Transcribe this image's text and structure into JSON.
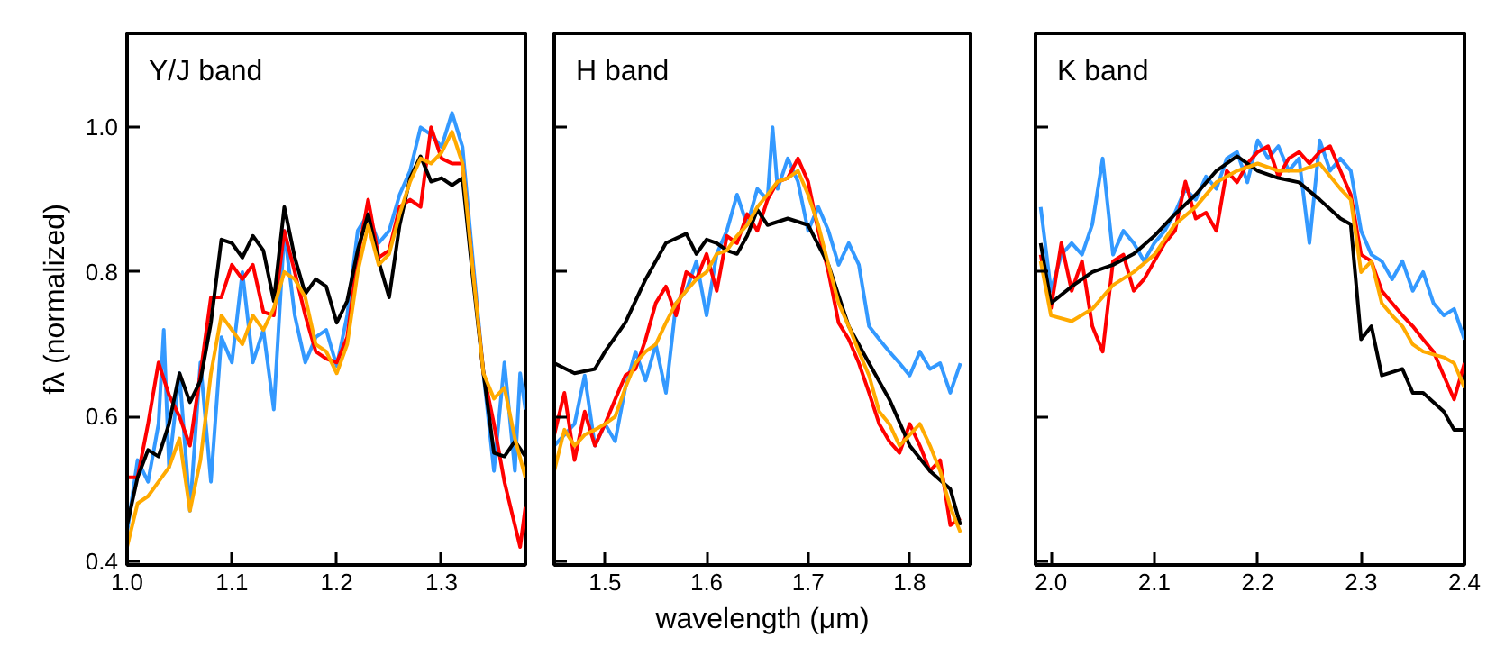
{
  "chart_data": [
    {
      "type": "line",
      "title": "Y/J band",
      "ylabel": "fλ (normalized)",
      "xlim": [
        1.0,
        1.38
      ],
      "ylim": [
        0.395,
        1.13
      ],
      "xticks": [
        {
          "value": 1.0,
          "label": "1.0"
        },
        1.1,
        1.2,
        1.3
      ],
      "yticks": [
        0.4,
        0.6,
        0.8,
        {
          "value": 1.0,
          "label": "1.0"
        }
      ],
      "grid": false,
      "marker": "none",
      "line_style": "solid",
      "x": [
        1.0,
        1.01,
        1.02,
        1.03,
        1.04,
        1.05,
        1.06,
        1.07,
        1.08,
        1.09,
        1.1,
        1.11,
        1.12,
        1.13,
        1.14,
        1.15,
        1.16,
        1.17,
        1.18,
        1.19,
        1.2,
        1.21,
        1.22,
        1.23,
        1.24,
        1.25,
        1.26,
        1.27,
        1.28,
        1.29,
        1.3,
        1.31,
        1.32,
        1.33,
        1.34,
        1.35,
        1.36,
        1.37,
        1.38
      ],
      "series": [
        {
          "color": "#3399ff",
          "x": [
            1.0,
            1.01,
            1.02,
            1.03,
            1.035,
            1.04,
            1.05,
            1.06,
            1.07,
            1.08,
            1.09,
            1.1,
            1.11,
            1.12,
            1.13,
            1.14,
            1.15,
            1.16,
            1.17,
            1.18,
            1.19,
            1.2,
            1.21,
            1.22,
            1.23,
            1.24,
            1.25,
            1.26,
            1.27,
            1.28,
            1.29,
            1.3,
            1.31,
            1.32,
            1.33,
            1.34,
            1.35,
            1.36,
            1.37,
            1.375,
            1.38
          ],
          "values": [
            0.44,
            0.54,
            0.51,
            0.59,
            0.72,
            0.53,
            0.66,
            0.47,
            0.675,
            0.51,
            0.71,
            0.675,
            0.8,
            0.675,
            0.72,
            0.61,
            0.857,
            0.74,
            0.675,
            0.71,
            0.72,
            0.67,
            0.74,
            0.857,
            0.88,
            0.84,
            0.857,
            0.907,
            0.94,
            1.0,
            0.99,
            0.973,
            1.02,
            0.973,
            0.815,
            0.66,
            0.525,
            0.675,
            0.525,
            0.66,
            0.61
          ]
        },
        {
          "color": "#ff0000",
          "x": [
            1.0,
            1.01,
            1.02,
            1.03,
            1.04,
            1.05,
            1.06,
            1.07,
            1.08,
            1.09,
            1.1,
            1.11,
            1.12,
            1.13,
            1.14,
            1.15,
            1.16,
            1.17,
            1.18,
            1.19,
            1.2,
            1.21,
            1.22,
            1.23,
            1.24,
            1.25,
            1.26,
            1.27,
            1.28,
            1.29,
            1.3,
            1.31,
            1.32,
            1.33,
            1.34,
            1.35,
            1.36,
            1.37,
            1.375,
            1.38
          ],
          "values": [
            0.516,
            0.516,
            0.59,
            0.675,
            0.63,
            0.6,
            0.56,
            0.66,
            0.765,
            0.765,
            0.81,
            0.79,
            0.81,
            0.745,
            0.74,
            0.857,
            0.8,
            0.74,
            0.69,
            0.68,
            0.675,
            0.71,
            0.82,
            0.9,
            0.82,
            0.83,
            0.89,
            0.9,
            0.89,
            1.0,
            0.957,
            0.95,
            0.95,
            0.8,
            0.66,
            0.59,
            0.51,
            0.45,
            0.42,
            0.475
          ]
        },
        {
          "color": "#000000",
          "values": [
            0.45,
            0.516,
            0.554,
            0.545,
            0.59,
            0.66,
            0.62,
            0.65,
            0.73,
            0.845,
            0.84,
            0.82,
            0.85,
            0.83,
            0.76,
            0.89,
            0.82,
            0.77,
            0.79,
            0.78,
            0.73,
            0.76,
            0.83,
            0.88,
            0.815,
            0.765,
            0.865,
            0.93,
            0.96,
            0.925,
            0.93,
            0.92,
            0.93,
            0.79,
            0.66,
            0.55,
            0.545,
            0.566,
            0.545
          ]
        },
        {
          "color": "#ffaa00",
          "values": [
            0.42,
            0.48,
            0.49,
            0.51,
            0.53,
            0.57,
            0.47,
            0.54,
            0.66,
            0.74,
            0.72,
            0.7,
            0.74,
            0.72,
            0.75,
            0.8,
            0.79,
            0.765,
            0.7,
            0.69,
            0.66,
            0.7,
            0.8,
            0.865,
            0.81,
            0.825,
            0.88,
            0.925,
            0.957,
            0.95,
            0.965,
            0.994,
            0.95,
            0.8,
            0.66,
            0.625,
            0.64,
            0.57,
            0.516
          ]
        }
      ]
    },
    {
      "type": "line",
      "title": "H band",
      "xlabel": "wavelength (μm)",
      "xlim": [
        1.45,
        1.86
      ],
      "ylim": [
        0.395,
        1.13
      ],
      "xticks": [
        1.5,
        1.6,
        1.7,
        1.8
      ],
      "yticks": [
        0.4,
        0.6,
        0.8,
        1.0
      ],
      "tick_labels": "x",
      "grid": false,
      "marker": "none",
      "line_style": "solid",
      "x": [
        1.45,
        1.46,
        1.47,
        1.48,
        1.49,
        1.5,
        1.51,
        1.52,
        1.53,
        1.54,
        1.55,
        1.56,
        1.57,
        1.58,
        1.59,
        1.6,
        1.61,
        1.62,
        1.63,
        1.64,
        1.65,
        1.66,
        1.67,
        1.68,
        1.69,
        1.7,
        1.71,
        1.72,
        1.73,
        1.74,
        1.75,
        1.76,
        1.77,
        1.78,
        1.79,
        1.8,
        1.81,
        1.82,
        1.83,
        1.84,
        1.85
      ],
      "series": [
        {
          "color": "#3399ff",
          "x": [
            1.45,
            1.46,
            1.47,
            1.48,
            1.49,
            1.5,
            1.51,
            1.52,
            1.53,
            1.54,
            1.55,
            1.56,
            1.57,
            1.58,
            1.59,
            1.6,
            1.61,
            1.62,
            1.63,
            1.64,
            1.65,
            1.66,
            1.665,
            1.67,
            1.68,
            1.69,
            1.7,
            1.71,
            1.72,
            1.73,
            1.74,
            1.75,
            1.76,
            1.77,
            1.78,
            1.79,
            1.8,
            1.81,
            1.82,
            1.83,
            1.84,
            1.85
          ],
          "values": [
            0.56,
            0.575,
            0.59,
            0.657,
            0.56,
            0.59,
            0.566,
            0.64,
            0.69,
            0.65,
            0.7,
            0.633,
            0.757,
            0.774,
            0.815,
            0.74,
            0.825,
            0.857,
            0.907,
            0.865,
            0.915,
            0.9,
            1.0,
            0.915,
            0.957,
            0.925,
            0.857,
            0.89,
            0.857,
            0.81,
            0.84,
            0.81,
            0.725,
            0.707,
            0.69,
            0.674,
            0.657,
            0.69,
            0.666,
            0.674,
            0.633,
            0.674
          ]
        },
        {
          "color": "#ff0000",
          "values": [
            0.575,
            0.633,
            0.54,
            0.607,
            0.56,
            0.59,
            0.624,
            0.657,
            0.666,
            0.707,
            0.757,
            0.78,
            0.74,
            0.8,
            0.79,
            0.825,
            0.774,
            0.85,
            0.84,
            0.88,
            0.857,
            0.9,
            0.925,
            0.93,
            0.957,
            0.925,
            0.857,
            0.8,
            0.73,
            0.707,
            0.674,
            0.633,
            0.59,
            0.566,
            0.55,
            0.59,
            0.56,
            0.525,
            0.54,
            0.45,
            0.46
          ]
        },
        {
          "color": "#000000",
          "x": [
            1.45,
            1.47,
            1.49,
            1.5,
            1.52,
            1.54,
            1.56,
            1.58,
            1.59,
            1.6,
            1.61,
            1.62,
            1.63,
            1.64,
            1.65,
            1.66,
            1.68,
            1.7,
            1.72,
            1.74,
            1.76,
            1.78,
            1.8,
            1.82,
            1.84,
            1.85
          ],
          "values": [
            0.674,
            0.66,
            0.666,
            0.69,
            0.73,
            0.79,
            0.84,
            0.853,
            0.825,
            0.845,
            0.84,
            0.83,
            0.825,
            0.85,
            0.886,
            0.865,
            0.874,
            0.865,
            0.81,
            0.725,
            0.674,
            0.624,
            0.56,
            0.525,
            0.5,
            0.45
          ]
        },
        {
          "color": "#ffaa00",
          "values": [
            0.525,
            0.582,
            0.56,
            0.575,
            0.582,
            0.59,
            0.6,
            0.64,
            0.674,
            0.69,
            0.7,
            0.73,
            0.757,
            0.774,
            0.79,
            0.8,
            0.825,
            0.83,
            0.85,
            0.865,
            0.89,
            0.907,
            0.925,
            0.93,
            0.94,
            0.907,
            0.865,
            0.81,
            0.757,
            0.725,
            0.69,
            0.657,
            0.607,
            0.59,
            0.56,
            0.575,
            0.59,
            0.56,
            0.525,
            0.475,
            0.44
          ]
        }
      ]
    },
    {
      "type": "line",
      "title": "K band",
      "xlim": [
        1.985,
        2.4
      ],
      "ylim": [
        0.395,
        1.13
      ],
      "xticks": [
        {
          "value": 2.0,
          "label": "2.0"
        },
        2.1,
        2.2,
        2.3,
        2.4
      ],
      "yticks": [
        0.4,
        0.6,
        0.8,
        1.0
      ],
      "tick_labels": "x",
      "grid": false,
      "marker": "none",
      "line_style": "solid",
      "x": [
        1.99,
        2.0,
        2.01,
        2.02,
        2.03,
        2.04,
        2.05,
        2.06,
        2.07,
        2.08,
        2.09,
        2.1,
        2.11,
        2.12,
        2.13,
        2.14,
        2.15,
        2.16,
        2.17,
        2.18,
        2.19,
        2.2,
        2.21,
        2.22,
        2.23,
        2.24,
        2.25,
        2.26,
        2.27,
        2.28,
        2.29,
        2.3,
        2.31,
        2.32,
        2.33,
        2.34,
        2.35,
        2.36,
        2.37,
        2.38,
        2.39,
        2.4
      ],
      "series": [
        {
          "color": "#3399ff",
          "values": [
            0.89,
            0.774,
            0.824,
            0.84,
            0.824,
            0.866,
            0.957,
            0.824,
            0.857,
            0.84,
            0.815,
            0.84,
            0.857,
            0.882,
            0.915,
            0.9,
            0.932,
            0.915,
            0.957,
            0.966,
            0.924,
            0.982,
            0.957,
            0.974,
            0.94,
            0.957,
            0.84,
            0.982,
            0.94,
            0.957,
            0.94,
            0.857,
            0.824,
            0.815,
            0.79,
            0.815,
            0.774,
            0.8,
            0.757,
            0.74,
            0.749,
            0.707
          ]
        },
        {
          "color": "#ff0000",
          "values": [
            0.824,
            0.75,
            0.84,
            0.774,
            0.815,
            0.725,
            0.69,
            0.815,
            0.824,
            0.774,
            0.79,
            0.815,
            0.84,
            0.857,
            0.925,
            0.874,
            0.882,
            0.857,
            0.94,
            0.924,
            0.95,
            0.966,
            0.974,
            0.932,
            0.957,
            0.966,
            0.95,
            0.966,
            0.974,
            0.94,
            0.907,
            0.824,
            0.815,
            0.774,
            0.757,
            0.74,
            0.725,
            0.707,
            0.69,
            0.657,
            0.624,
            0.674
          ]
        },
        {
          "color": "#000000",
          "x": [
            1.99,
            2.0,
            2.02,
            2.04,
            2.06,
            2.08,
            2.1,
            2.12,
            2.14,
            2.16,
            2.18,
            2.2,
            2.22,
            2.24,
            2.26,
            2.28,
            2.29,
            2.3,
            2.31,
            2.32,
            2.34,
            2.35,
            2.36,
            2.38,
            2.39,
            2.4
          ],
          "values": [
            0.84,
            0.757,
            0.78,
            0.8,
            0.81,
            0.825,
            0.85,
            0.88,
            0.907,
            0.94,
            0.96,
            0.94,
            0.93,
            0.924,
            0.9,
            0.874,
            0.866,
            0.707,
            0.725,
            0.657,
            0.666,
            0.633,
            0.633,
            0.607,
            0.582,
            0.582
          ]
        },
        {
          "color": "#ffaa00",
          "x": [
            1.99,
            2.0,
            2.02,
            2.04,
            2.06,
            2.08,
            2.1,
            2.12,
            2.14,
            2.16,
            2.18,
            2.2,
            2.22,
            2.24,
            2.26,
            2.28,
            2.29,
            2.3,
            2.31,
            2.32,
            2.33,
            2.34,
            2.35,
            2.36,
            2.38,
            2.39,
            2.4
          ],
          "values": [
            0.815,
            0.74,
            0.732,
            0.749,
            0.782,
            0.8,
            0.824,
            0.866,
            0.89,
            0.924,
            0.94,
            0.95,
            0.94,
            0.94,
            0.95,
            0.915,
            0.9,
            0.8,
            0.815,
            0.757,
            0.74,
            0.725,
            0.7,
            0.69,
            0.682,
            0.674,
            0.64
          ]
        }
      ]
    }
  ]
}
